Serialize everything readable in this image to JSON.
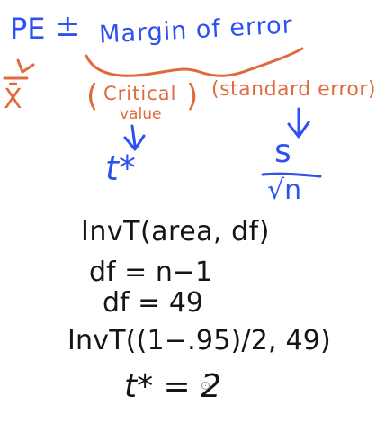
{
  "colors": {
    "blue_ink": "#2f52ee",
    "orange_ink": "#df6a3d",
    "black_ink": "#151515"
  },
  "top_line": {
    "pe": "PE",
    "plus_minus": "±",
    "margin_of_error": "Margin of error"
  },
  "left_branch": {
    "symbol": "X̄"
  },
  "critical_branch": {
    "open_paren": "(",
    "critical": "Critical",
    "value": "value",
    "close_paren": ")",
    "result": "t*"
  },
  "error_branch": {
    "label": "(standard error)",
    "numerator": "s",
    "denominator": "√n"
  },
  "work": {
    "line1": "InvT(area, df)",
    "line2": "df = n−1",
    "line3": "df = 49",
    "line4": "InvT((1−.95)/2, 49)",
    "line5": "t* = 2"
  }
}
